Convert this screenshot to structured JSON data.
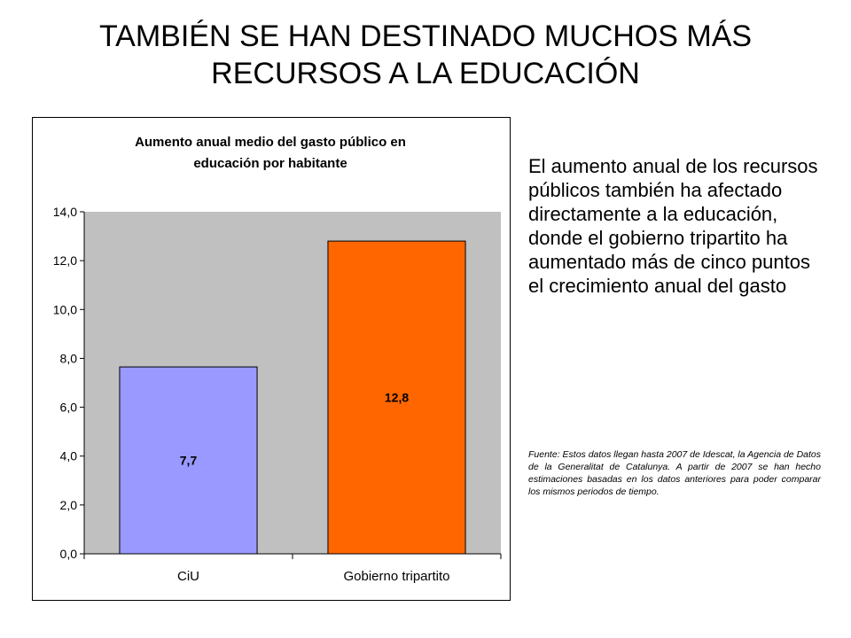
{
  "slide": {
    "title": "TAMBIÉN SE HAN DESTINADO MUCHOS MÁS RECURSOS A LA EDUCACIÓN",
    "body_text": "El aumento anual de los recursos públicos también ha afectado directamente a la educación, donde el gobierno tripartito ha aumentado más de cinco puntos el crecimiento anual del gasto",
    "source_note": "Fuente: Estos datos llegan hasta 2007 de Idescat, la Agencia de Datos de la Generalitat de Catalunya. A partir de 2007 se han hecho estimaciones basadas en los datos anteriores para poder comparar los mismos periodos de tiempo."
  },
  "chart_data": {
    "type": "bar",
    "title_lines": [
      "Aumento anual medio del gasto público en",
      "educación por habitante"
    ],
    "categories": [
      "CiU",
      "Gobierno tripartito"
    ],
    "values": [
      7.65,
      12.8
    ],
    "data_labels": [
      "7,7",
      "12,8"
    ],
    "bar_colors": [
      "#9999ff",
      "#ff6600"
    ],
    "plot_background": "#c0c0c0",
    "ylim": [
      0,
      14
    ],
    "yticks": [
      0,
      2,
      4,
      6,
      8,
      10,
      12,
      14
    ],
    "ytick_labels": [
      "0,0",
      "2,0",
      "4,0",
      "6,0",
      "8,0",
      "10,0",
      "12,0",
      "14,0"
    ],
    "grid": false,
    "legend": "none"
  }
}
